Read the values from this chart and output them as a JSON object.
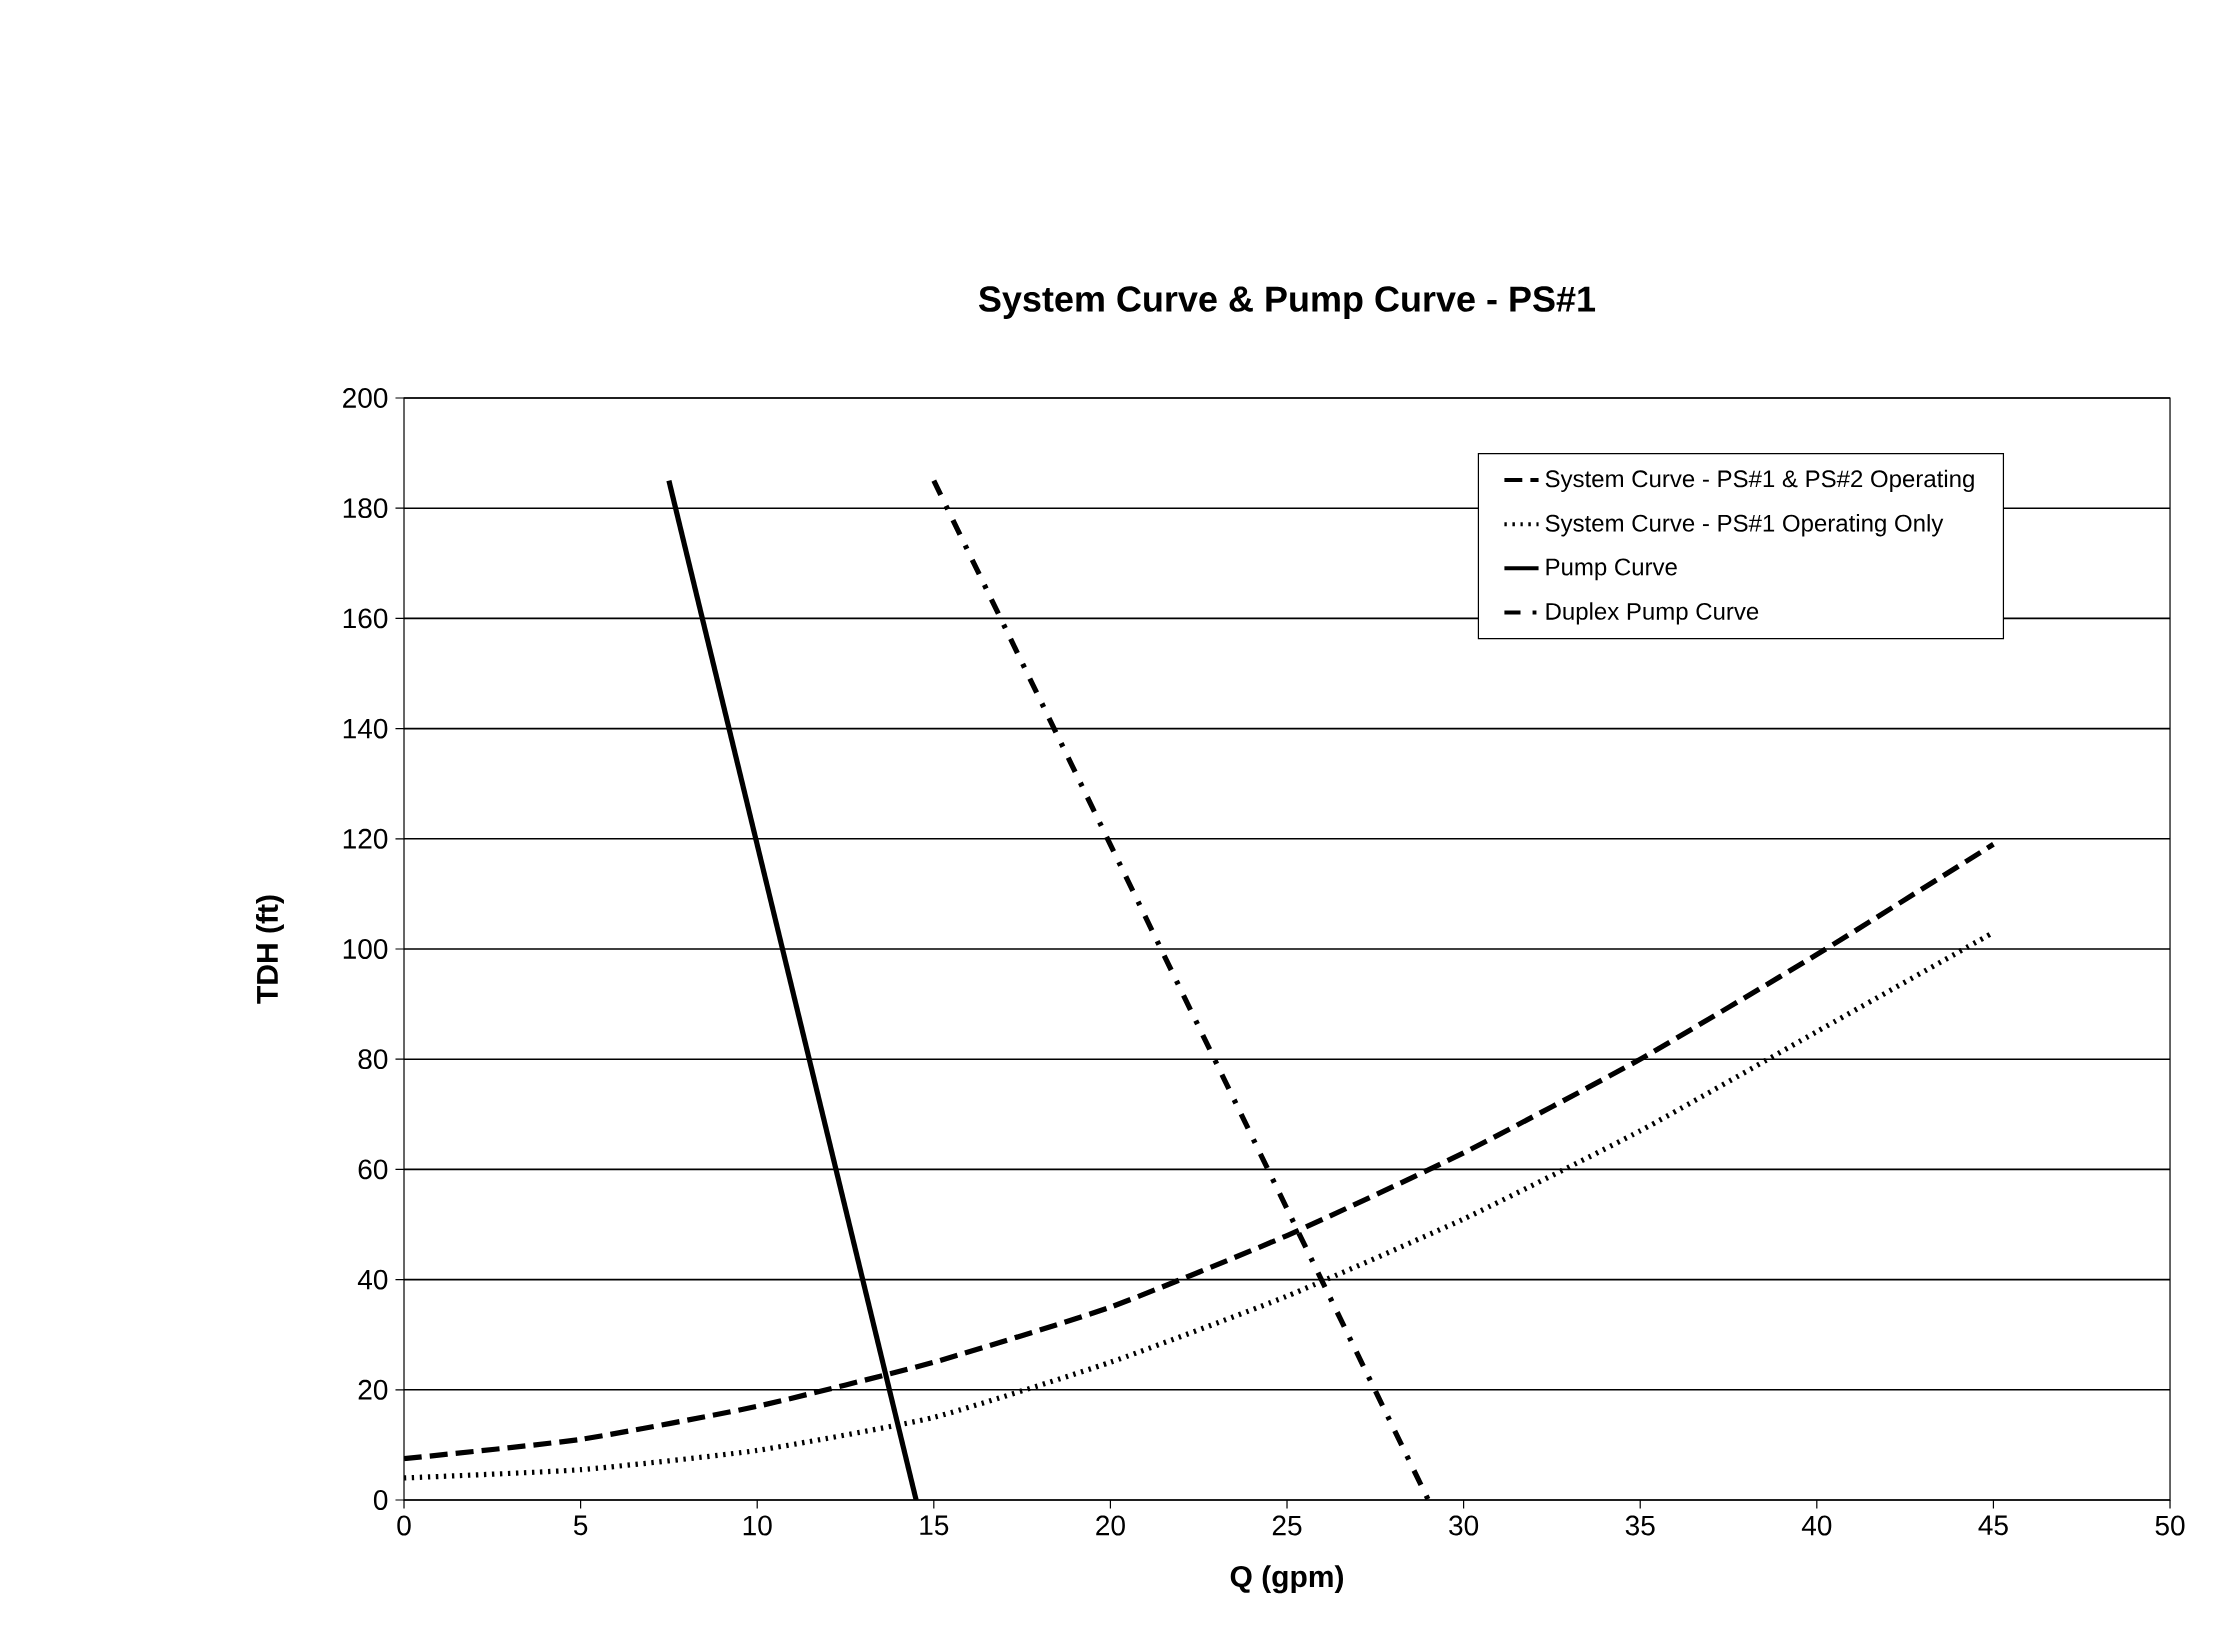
{
  "chart_data": {
    "type": "line",
    "title": "System Curve & Pump Curve - PS#1",
    "xlabel": "Q (gpm)",
    "ylabel": "TDH (ft)",
    "xlim": [
      0,
      50
    ],
    "ylim": [
      0,
      200
    ],
    "xticks": [
      0,
      5,
      10,
      15,
      20,
      25,
      30,
      35,
      40,
      45,
      50
    ],
    "yticks": [
      0,
      20,
      40,
      60,
      80,
      100,
      120,
      140,
      160,
      180,
      200
    ],
    "grid": "y",
    "legend": "top right",
    "marker": "none",
    "series": [
      {
        "name": "System Curve - PS#1 & PS#2 Operating",
        "color": "#000000",
        "line_style": "dashed",
        "x": [
          0,
          5,
          10,
          15,
          20,
          25,
          30,
          35,
          40,
          45
        ],
        "values": [
          7.5,
          11,
          17,
          25,
          35,
          48,
          63,
          80,
          99,
          119
        ]
      },
      {
        "name": "System Curve - PS#1 Operating Only",
        "color": "#000000",
        "line_style": "dotted",
        "x": [
          0,
          5,
          10,
          15,
          20,
          25,
          30,
          35,
          40,
          45
        ],
        "values": [
          4,
          5.5,
          9,
          15,
          25,
          37,
          51,
          67,
          85,
          103
        ]
      },
      {
        "name": "Pump Curve",
        "color": "#000000",
        "line_style": "solid",
        "x": [
          7.5,
          14.5
        ],
        "values": [
          185,
          0
        ]
      },
      {
        "name": "Duplex Pump Curve",
        "color": "#000000",
        "line_style": "dashdot",
        "x": [
          15,
          29
        ],
        "values": [
          185,
          0
        ]
      }
    ]
  }
}
